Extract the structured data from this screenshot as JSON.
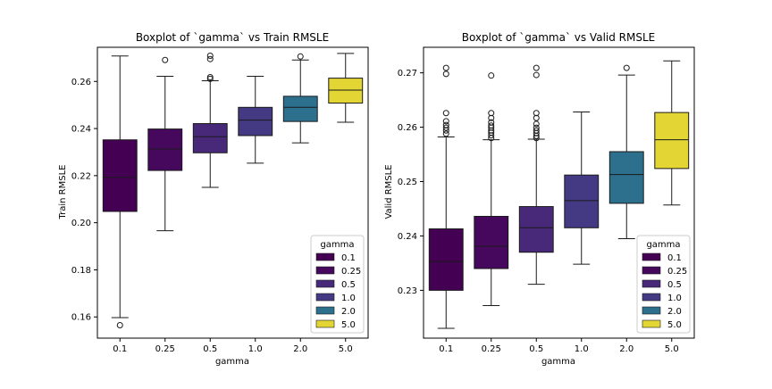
{
  "chart_data": [
    {
      "type": "box",
      "title": "Boxplot of `gamma` vs Train RMSLE",
      "xlabel": "gamma",
      "ylabel": "Train RMSLE",
      "categories": [
        "0.1",
        "0.25",
        "0.5",
        "1.0",
        "2.0",
        "5.0"
      ],
      "ylim": [
        0.151,
        0.2745
      ],
      "yticks": [
        0.16,
        0.18,
        0.2,
        0.22,
        0.24,
        0.26
      ],
      "ytick_labels": [
        "0.16",
        "0.18",
        "0.20",
        "0.22",
        "0.24",
        "0.26"
      ],
      "boxes": [
        {
          "category": "0.1",
          "whislo": 0.1597,
          "q1": 0.2048,
          "med": 0.2193,
          "q3": 0.2352,
          "whishi": 0.2708,
          "fliers": [
            0.1565
          ]
        },
        {
          "category": "0.25",
          "whislo": 0.1966,
          "q1": 0.2222,
          "med": 0.2313,
          "q3": 0.2398,
          "whishi": 0.2622,
          "fliers": [
            0.2691
          ]
        },
        {
          "category": "0.5",
          "whislo": 0.215,
          "q1": 0.2297,
          "med": 0.2365,
          "q3": 0.2421,
          "whishi": 0.2603,
          "fliers": [
            0.2611,
            0.2618,
            0.2695,
            0.2709
          ]
        },
        {
          "category": "1.0",
          "whislo": 0.2253,
          "q1": 0.237,
          "med": 0.2436,
          "q3": 0.249,
          "whishi": 0.2622,
          "fliers": []
        },
        {
          "category": "2.0",
          "whislo": 0.2339,
          "q1": 0.243,
          "med": 0.249,
          "q3": 0.2537,
          "whishi": 0.2691,
          "fliers": [
            0.2706
          ]
        },
        {
          "category": "5.0",
          "whislo": 0.2427,
          "q1": 0.2508,
          "med": 0.2563,
          "q3": 0.2614,
          "whishi": 0.2719,
          "fliers": []
        }
      ],
      "legend": {
        "title": "gamma",
        "placement": "lower-right"
      }
    },
    {
      "type": "box",
      "title": "Boxplot of `gamma` vs Valid RMSLE",
      "xlabel": "gamma",
      "ylabel": "Valid RMSLE",
      "categories": [
        "0.1",
        "0.25",
        "0.5",
        "1.0",
        "2.0",
        "5.0"
      ],
      "ylim": [
        0.2212,
        0.2747
      ],
      "yticks": [
        0.23,
        0.24,
        0.25,
        0.26,
        0.27
      ],
      "ytick_labels": [
        "0.23",
        "0.24",
        "0.25",
        "0.26",
        "0.27"
      ],
      "boxes": [
        {
          "category": "0.1",
          "whislo": 0.223,
          "q1": 0.23,
          "med": 0.2353,
          "q3": 0.2413,
          "whishi": 0.2582,
          "fliers": [
            0.2588,
            0.2594,
            0.2599,
            0.2604,
            0.2611,
            0.2626,
            0.2698,
            0.2709
          ]
        },
        {
          "category": "0.25",
          "whislo": 0.2272,
          "q1": 0.234,
          "med": 0.2381,
          "q3": 0.2436,
          "whishi": 0.2577,
          "fliers": [
            0.258,
            0.2585,
            0.259,
            0.2594,
            0.2599,
            0.2603,
            0.2609,
            0.2617,
            0.2626,
            0.2695
          ]
        },
        {
          "category": "0.5",
          "whislo": 0.2311,
          "q1": 0.237,
          "med": 0.2415,
          "q3": 0.2454,
          "whishi": 0.2578,
          "fliers": [
            0.258,
            0.2584,
            0.2589,
            0.2594,
            0.2599,
            0.2606,
            0.2617,
            0.2626,
            0.2696,
            0.2709
          ]
        },
        {
          "category": "1.0",
          "whislo": 0.2348,
          "q1": 0.2415,
          "med": 0.2465,
          "q3": 0.2512,
          "whishi": 0.2628,
          "fliers": []
        },
        {
          "category": "2.0",
          "whislo": 0.2395,
          "q1": 0.246,
          "med": 0.2513,
          "q3": 0.2555,
          "whishi": 0.2696,
          "fliers": [
            0.2709
          ]
        },
        {
          "category": "5.0",
          "whislo": 0.2457,
          "q1": 0.2524,
          "med": 0.2577,
          "q3": 0.2627,
          "whishi": 0.2722,
          "fliers": []
        }
      ],
      "legend": {
        "title": "gamma",
        "placement": "lower-right"
      }
    }
  ],
  "colors": {
    "0.1": "#440154",
    "0.25": "#46085c",
    "0.5": "#482878",
    "1.0": "#443983",
    "2.0": "#2d708e",
    "5.0": "#e3d534"
  }
}
